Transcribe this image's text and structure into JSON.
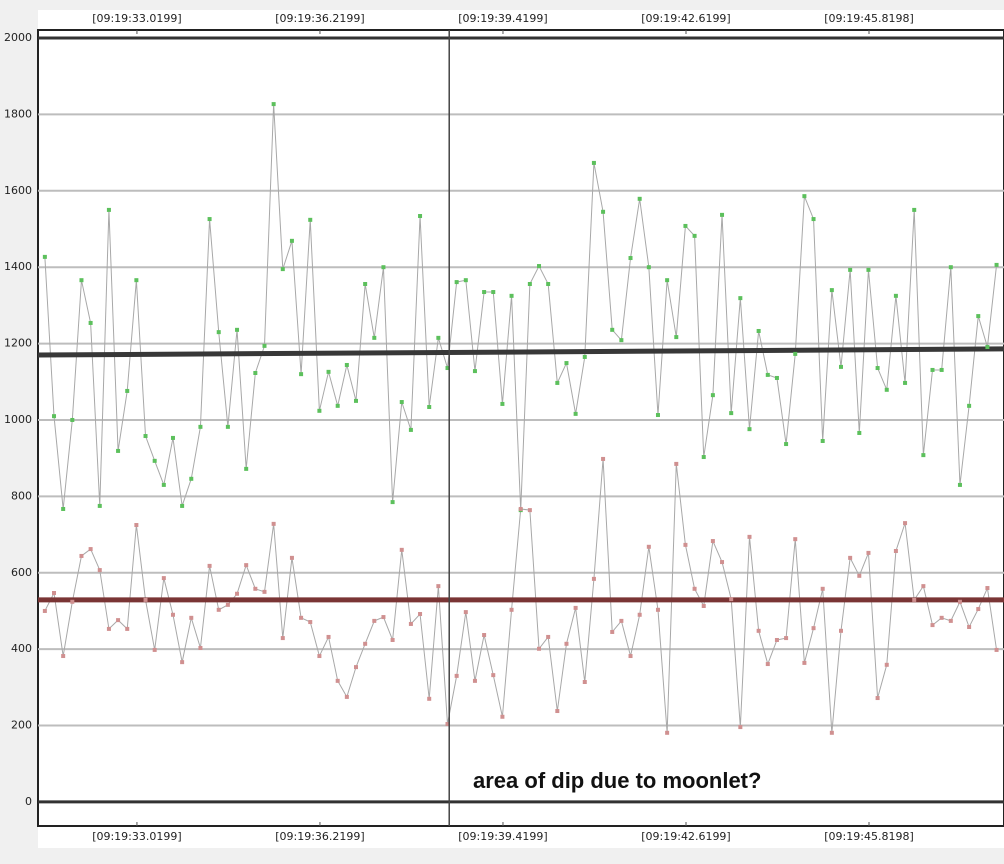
{
  "chart_data": {
    "type": "line",
    "annotation": "area of dip due to moonlet?",
    "xlim": [
      31.29,
      48.18
    ],
    "xticks": [
      {
        "value": 33.0199,
        "label": "[09:19:33.0199]"
      },
      {
        "value": 36.2199,
        "label": "[09:19:36.2199]"
      },
      {
        "value": 39.4199,
        "label": "[09:19:39.4199]"
      },
      {
        "value": 42.6199,
        "label": "[09:19:42.6199]"
      },
      {
        "value": 45.8198,
        "label": "[09:19:45.8198]"
      }
    ],
    "ylim": [
      -63,
      2021
    ],
    "yticks": [
      0,
      200,
      400,
      600,
      800,
      1000,
      1200,
      1400,
      1600,
      1800,
      2000
    ],
    "grid": true,
    "x": [
      31.41,
      31.57,
      31.73,
      31.89,
      32.05,
      32.21,
      32.37,
      32.53,
      32.69,
      32.85,
      33.01,
      33.17,
      33.33,
      33.49,
      33.65,
      33.81,
      33.97,
      34.13,
      34.29,
      34.45,
      34.61,
      34.77,
      34.93,
      35.09,
      35.25,
      35.41,
      35.57,
      35.73,
      35.89,
      36.05,
      36.21,
      36.37,
      36.53,
      36.69,
      36.85,
      37.01,
      37.17,
      37.33,
      37.49,
      37.65,
      37.81,
      37.97,
      38.13,
      38.29,
      38.45,
      38.61,
      38.77,
      38.93,
      39.09,
      39.25,
      39.41,
      39.57,
      39.73,
      39.89,
      40.05,
      40.21,
      40.37,
      40.53,
      40.69,
      40.85,
      41.01,
      41.17,
      41.33,
      41.49,
      41.65,
      41.81,
      41.97,
      42.13,
      42.29,
      42.45,
      42.61,
      42.77,
      42.93,
      43.09,
      43.25,
      43.41,
      43.57,
      43.73,
      43.89,
      44.05,
      44.21,
      44.37,
      44.53,
      44.69,
      44.85,
      45.01,
      45.17,
      45.33,
      45.49,
      45.65,
      45.81,
      45.97,
      46.13,
      46.29,
      46.45,
      46.61,
      46.77,
      46.93,
      47.09,
      47.25,
      47.41,
      47.57,
      47.73,
      47.89,
      48.05
    ],
    "series": [
      {
        "color": "#5cc05c",
        "values": [
          1427,
          1010,
          767,
          1000,
          1366,
          1254,
          775,
          1550,
          919,
          1076,
          1366,
          958,
          893,
          830,
          953,
          775,
          846,
          982,
          1526,
          1230,
          982,
          1236,
          872,
          1123,
          1194,
          1827,
          1395,
          1469,
          1120,
          1524,
          1024,
          1126,
          1037,
          1144,
          1050,
          1356,
          1215,
          1400,
          785,
          1047,
          974,
          1534,
          1034,
          1215,
          1136,
          1361,
          1366,
          1128,
          1335,
          1335,
          1042,
          1325,
          764,
          1356,
          1403,
          1356,
          1097,
          1149,
          1016,
          1165,
          1673,
          1545,
          1236,
          1209,
          1424,
          1579,
          1400,
          1013,
          1366,
          1217,
          1508,
          1482,
          903,
          1065,
          1537,
          1018,
          1319,
          976,
          1233,
          1118,
          1110,
          937,
          1173,
          1586,
          1526,
          945,
          1340,
          1139,
          1393,
          966,
          1393,
          1136,
          1079,
          1325,
          1097,
          1550,
          908,
          1131,
          1131,
          1400,
          830,
          1037,
          1272,
          1191,
          1406
        ]
      },
      {
        "color": "#d09090",
        "values": [
          500,
          547,
          382,
          524,
          644,
          662,
          607,
          453,
          476,
          453,
          725,
          529,
          398,
          586,
          490,
          366,
          482,
          403,
          618,
          503,
          516,
          545,
          620,
          558,
          550,
          728,
          429,
          639,
          482,
          471,
          382,
          432,
          317,
          275,
          353,
          414,
          474,
          484,
          424,
          660,
          466,
          492,
          270,
          565,
          204,
          330,
          497,
          317,
          437,
          332,
          223,
          503,
          767,
          764,
          401,
          432,
          238,
          414,
          508,
          314,
          584,
          898,
          445,
          474,
          382,
          490,
          668,
          503,
          181,
          885,
          673,
          558,
          513,
          683,
          628,
          531,
          196,
          694,
          448,
          361,
          424,
          429,
          688,
          364,
          455,
          558,
          181,
          448,
          639,
          592,
          652,
          272,
          359,
          657,
          730,
          529,
          565,
          463,
          482,
          474,
          524,
          458,
          505,
          560,
          398
        ]
      }
    ],
    "trend_lines": [
      {
        "color": "#383838",
        "values": [
          1170,
          1186
        ]
      },
      {
        "color": "#7a3535",
        "values": [
          529,
          529
        ]
      }
    ],
    "vertical_line": 38.48
  }
}
